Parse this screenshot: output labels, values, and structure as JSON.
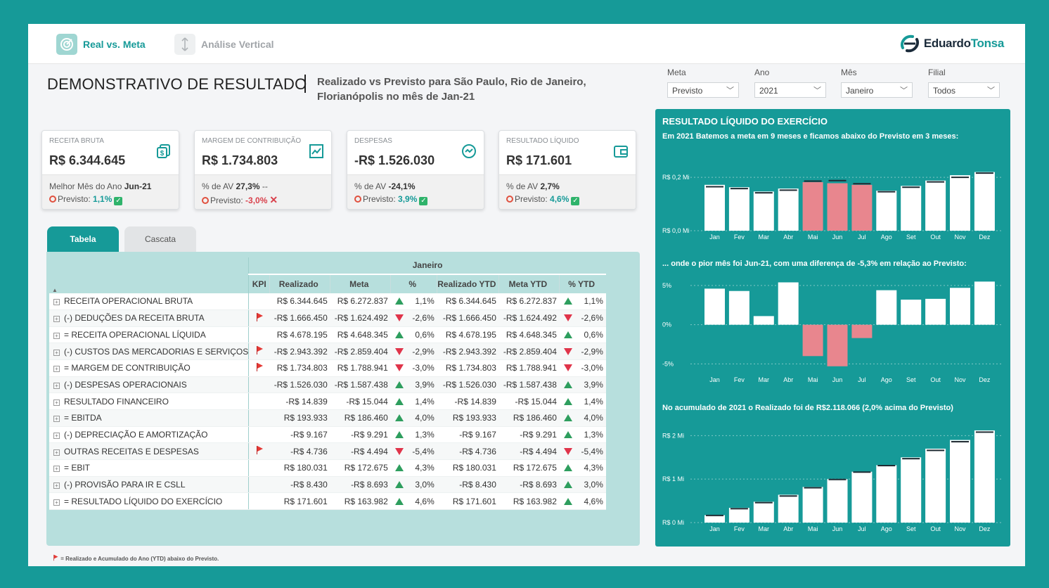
{
  "nav": {
    "real_vs_meta": "Real vs. Meta",
    "analise_vertical": "Análise Vertical",
    "brand_a": "Eduardo",
    "brand_b": "Tonsa"
  },
  "header": {
    "title": "DEMONSTRATIVO DE RESULTADO",
    "subtitle": "Realizado vs Previsto para São Paulo, Rio de Janeiro, Florianópolis no mês de Jan-21"
  },
  "filters": [
    {
      "label": "Meta",
      "value": "Previsto"
    },
    {
      "label": "Ano",
      "value": "2021"
    },
    {
      "label": "Mês",
      "value": "Janeiro"
    },
    {
      "label": "Filial",
      "value": "Todos"
    }
  ],
  "kpis": [
    {
      "title": "RECEITA BRUTA",
      "value": "R$ 6.344.645",
      "line1_prefix": "Melhor Mês do Ano",
      "line1_value": "Jun-21",
      "line1_suffix": "",
      "prev_label": "Previsto:",
      "prev_value": "1,1%",
      "prev_ok": true,
      "icon": "money-icon"
    },
    {
      "title": "MARGEM DE CONTRIBUIÇÃO",
      "value": "R$ 1.734.803",
      "line1_prefix": "% de AV",
      "line1_value": "27,3%",
      "line1_suffix": "--",
      "prev_label": "Previsto:",
      "prev_value": "-3,0%",
      "prev_ok": false,
      "icon": "chart-up-icon"
    },
    {
      "title": "DESPESAS",
      "value": "-R$ 1.526.030",
      "line1_prefix": "% de AV",
      "line1_value": "-24,1%",
      "line1_suffix": "",
      "prev_label": "Previsto:",
      "prev_value": "3,9%",
      "prev_ok": true,
      "icon": "gauge-icon"
    },
    {
      "title": "RESULTADO LÍQUIDO",
      "value": "R$ 171.601",
      "line1_prefix": "% de AV",
      "line1_value": "2,7%",
      "line1_suffix": "",
      "prev_label": "Previsto:",
      "prev_value": "4,6%",
      "prev_ok": true,
      "icon": "wallet-icon"
    }
  ],
  "tabs": {
    "tabela": "Tabela",
    "cascata": "Cascata"
  },
  "table": {
    "group_header": "Janeiro",
    "sort_icon": "▲",
    "columns": [
      "KPI",
      "Realizado",
      "Meta",
      "%",
      "Realizado YTD",
      "Meta YTD",
      "% YTD"
    ],
    "rows": [
      {
        "name": "RECEITA OPERACIONAL BRUTA",
        "flag": false,
        "real": "R$ 6.344.645",
        "meta": "R$ 6.272.837",
        "up": true,
        "pct": "1,1%",
        "real_ytd": "R$ 6.344.645",
        "meta_ytd": "R$ 6.272.837",
        "up_ytd": true,
        "pct_ytd": "1,1%"
      },
      {
        "name": "(-) DEDUÇÕES DA RECEITA BRUTA",
        "flag": true,
        "real": "-R$ 1.666.450",
        "meta": "-R$ 1.624.492",
        "up": false,
        "pct": "-2,6%",
        "real_ytd": "-R$ 1.666.450",
        "meta_ytd": "-R$ 1.624.492",
        "up_ytd": false,
        "pct_ytd": "-2,6%"
      },
      {
        "name": "= RECEITA OPERACIONAL LÍQUIDA",
        "flag": false,
        "real": "R$ 4.678.195",
        "meta": "R$ 4.648.345",
        "up": true,
        "pct": "0,6%",
        "real_ytd": "R$ 4.678.195",
        "meta_ytd": "R$ 4.648.345",
        "up_ytd": true,
        "pct_ytd": "0,6%"
      },
      {
        "name": "(-) CUSTOS DAS MERCADORIAS E SERVIÇOS",
        "flag": true,
        "real": "-R$ 2.943.392",
        "meta": "-R$ 2.859.404",
        "up": false,
        "pct": "-2,9%",
        "real_ytd": "-R$ 2.943.392",
        "meta_ytd": "-R$ 2.859.404",
        "up_ytd": false,
        "pct_ytd": "-2,9%"
      },
      {
        "name": "= MARGEM DE CONTRIBUIÇÃO",
        "flag": true,
        "real": "R$ 1.734.803",
        "meta": "R$ 1.788.941",
        "up": false,
        "pct": "-3,0%",
        "real_ytd": "R$ 1.734.803",
        "meta_ytd": "R$ 1.788.941",
        "up_ytd": false,
        "pct_ytd": "-3,0%"
      },
      {
        "name": "(-) DESPESAS OPERACIONAIS",
        "flag": false,
        "real": "-R$ 1.526.030",
        "meta": "-R$ 1.587.438",
        "up": true,
        "pct": "3,9%",
        "real_ytd": "-R$ 1.526.030",
        "meta_ytd": "-R$ 1.587.438",
        "up_ytd": true,
        "pct_ytd": "3,9%"
      },
      {
        "name": "RESULTADO FINANCEIRO",
        "flag": false,
        "real": "-R$ 14.839",
        "meta": "-R$ 15.044",
        "up": true,
        "pct": "1,4%",
        "real_ytd": "-R$ 14.839",
        "meta_ytd": "-R$ 15.044",
        "up_ytd": true,
        "pct_ytd": "1,4%"
      },
      {
        "name": "= EBITDA",
        "flag": false,
        "real": "R$ 193.933",
        "meta": "R$ 186.460",
        "up": true,
        "pct": "4,0%",
        "real_ytd": "R$ 193.933",
        "meta_ytd": "R$ 186.460",
        "up_ytd": true,
        "pct_ytd": "4,0%"
      },
      {
        "name": "(-) DEPRECIAÇÃO E AMORTIZAÇÃO",
        "flag": false,
        "real": "-R$ 9.167",
        "meta": "-R$ 9.291",
        "up": true,
        "pct": "1,3%",
        "real_ytd": "-R$ 9.167",
        "meta_ytd": "-R$ 9.291",
        "up_ytd": true,
        "pct_ytd": "1,3%"
      },
      {
        "name": "OUTRAS RECEITAS E DESPESAS",
        "flag": true,
        "real": "-R$ 4.736",
        "meta": "-R$ 4.494",
        "up": false,
        "pct": "-5,4%",
        "real_ytd": "-R$ 4.736",
        "meta_ytd": "-R$ 4.494",
        "up_ytd": false,
        "pct_ytd": "-5,4%"
      },
      {
        "name": "= EBIT",
        "flag": false,
        "real": "R$ 180.031",
        "meta": "R$ 172.675",
        "up": true,
        "pct": "4,3%",
        "real_ytd": "R$ 180.031",
        "meta_ytd": "R$ 172.675",
        "up_ytd": true,
        "pct_ytd": "4,3%"
      },
      {
        "name": "(-) PROVISÃO PARA IR E CSLL",
        "flag": false,
        "real": "-R$ 8.430",
        "meta": "-R$ 8.693",
        "up": true,
        "pct": "3,0%",
        "real_ytd": "-R$ 8.430",
        "meta_ytd": "-R$ 8.693",
        "up_ytd": true,
        "pct_ytd": "3,0%"
      },
      {
        "name": "= RESULTADO LÍQUIDO DO EXERCÍCIO",
        "flag": false,
        "real": "R$ 171.601",
        "meta": "R$ 163.982",
        "up": true,
        "pct": "4,6%",
        "real_ytd": "R$ 171.601",
        "meta_ytd": "R$ 163.982",
        "up_ytd": true,
        "pct_ytd": "4,6%"
      }
    ]
  },
  "footnote": "= Realizado e Acumulado do Ano (YTD) abaixo do Previsto.",
  "right_panel": {
    "title": "RESULTADO LÍQUIDO DO EXERCÍCIO",
    "sub1": "Em 2021 Batemos a meta em 9 meses e ficamos abaixo do Previsto em 3 meses:",
    "sub2": "... onde o pior mês foi Jun-21, com uma diferença de -5,3% em relação ao Previsto:",
    "sub3": "No acumulado de 2021 o Realizado foi de R$2.118.066 (2,0% acima do Previsto)"
  },
  "colors": {
    "teal": "#169a98",
    "bar": "#ffffff",
    "below": "#e8868e"
  },
  "chart_data": [
    {
      "type": "bar",
      "categories": [
        "Jan",
        "Fev",
        "Mar",
        "Abr",
        "Mai",
        "Jun",
        "Jul",
        "Ago",
        "Set",
        "Out",
        "Nov",
        "Dez"
      ],
      "values": [
        0.172,
        0.163,
        0.147,
        0.158,
        0.182,
        0.178,
        0.172,
        0.15,
        0.168,
        0.188,
        0.208,
        0.22
      ],
      "meta": [
        0.165,
        0.158,
        0.142,
        0.152,
        0.186,
        0.188,
        0.176,
        0.146,
        0.163,
        0.183,
        0.2,
        0.216
      ],
      "below_meta": [
        false,
        false,
        false,
        false,
        true,
        true,
        true,
        false,
        false,
        false,
        false,
        false
      ],
      "tick_labels": [
        "R$ 0,0 Mi",
        "R$ 0,2 Mi"
      ],
      "ylim": [
        0,
        0.24
      ]
    },
    {
      "type": "bar",
      "categories": [
        "Jan",
        "Fev",
        "Mar",
        "Abr",
        "Mai",
        "Jun",
        "Jul",
        "Ago",
        "Set",
        "Out",
        "Nov",
        "Dez"
      ],
      "values": [
        4.6,
        4.3,
        1.1,
        5.4,
        -4.0,
        -5.3,
        -1.7,
        4.4,
        3.2,
        3.3,
        4.7,
        5.5
      ],
      "tick_labels": [
        "-5%",
        "0%",
        "5%"
      ],
      "ylim": [
        -5.5,
        5.8
      ]
    },
    {
      "type": "bar",
      "categories": [
        "Jan",
        "Fev",
        "Mar",
        "Abr",
        "Mai",
        "Jun",
        "Jul",
        "Ago",
        "Set",
        "Out",
        "Nov",
        "Dez"
      ],
      "values": [
        0.17,
        0.34,
        0.48,
        0.64,
        0.82,
        1.0,
        1.17,
        1.32,
        1.5,
        1.7,
        1.9,
        2.12
      ],
      "meta": [
        0.164,
        0.32,
        0.46,
        0.61,
        0.8,
        0.99,
        1.16,
        1.31,
        1.47,
        1.66,
        1.86,
        2.08
      ],
      "tick_labels": [
        "R$ 0 Mi",
        "R$ 1 Mi",
        "R$ 2 Mi"
      ],
      "ylim": [
        0,
        2.2
      ]
    }
  ]
}
